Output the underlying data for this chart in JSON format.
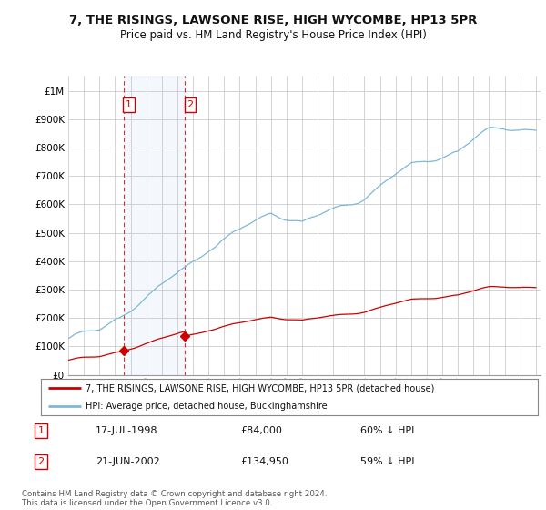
{
  "title": "7, THE RISINGS, LAWSONE RISE, HIGH WYCOMBE, HP13 5PR",
  "subtitle": "Price paid vs. HM Land Registry's House Price Index (HPI)",
  "legend_label_red": "7, THE RISINGS, LAWSONE RISE, HIGH WYCOMBE, HP13 5PR (detached house)",
  "legend_label_blue": "HPI: Average price, detached house, Buckinghamshire",
  "footnote": "Contains HM Land Registry data © Crown copyright and database right 2024.\nThis data is licensed under the Open Government Licence v3.0.",
  "annotation1_label": "1",
  "annotation1_date": "17-JUL-1998",
  "annotation1_price": "£84,000",
  "annotation1_hpi": "60% ↓ HPI",
  "annotation2_label": "2",
  "annotation2_date": "21-JUN-2002",
  "annotation2_price": "£134,950",
  "annotation2_hpi": "59% ↓ HPI",
  "sale1_x": 1998.54,
  "sale1_y": 84000,
  "sale2_x": 2002.47,
  "sale2_y": 134950,
  "vline1_x": 1998.54,
  "vline2_x": 2002.47,
  "ylim": [
    0,
    1050000
  ],
  "xlim": [
    1995.0,
    2025.3
  ],
  "red_color": "#cc0000",
  "blue_color": "#7db8d8",
  "vline_color": "#cc0000",
  "background_color": "#ffffff",
  "grid_color": "#cccccc",
  "yticks": [
    0,
    100000,
    200000,
    300000,
    400000,
    500000,
    600000,
    700000,
    800000,
    900000,
    1000000
  ],
  "ytick_labels": [
    "£0",
    "£100K",
    "£200K",
    "£300K",
    "£400K",
    "£500K",
    "£600K",
    "£700K",
    "£800K",
    "£900K",
    "£1M"
  ]
}
